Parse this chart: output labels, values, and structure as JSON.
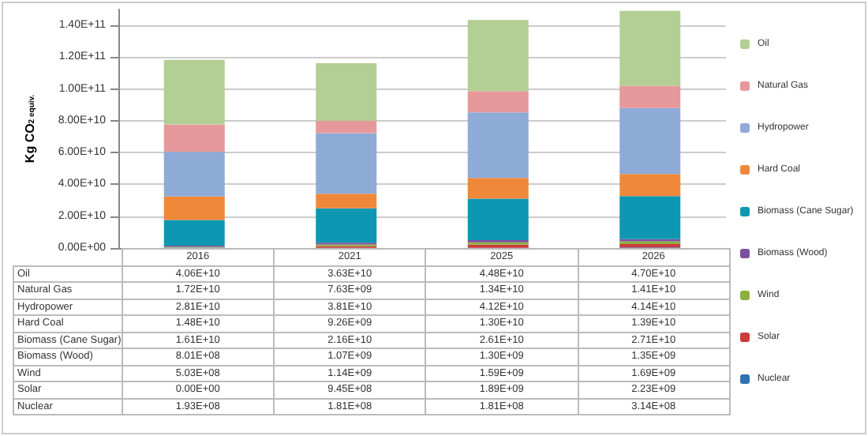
{
  "chart_data": {
    "type": "bar",
    "stacked": true,
    "ylabel": "Kg CO$_{2 equiv.}$",
    "categories": [
      "2016",
      "2021",
      "2025",
      "2026"
    ],
    "series": [
      {
        "name": "Nuclear",
        "color": "#2f73b5",
        "values": [
          193000000.0,
          181000000.0,
          181000000.0,
          314000000.0
        ],
        "value_labels": [
          "1.93E+08",
          "1.81E+08",
          "1.81E+08",
          "3.14E+08"
        ]
      },
      {
        "name": "Solar",
        "color": "#cc3b3b",
        "values": [
          0,
          945000000.0,
          1890000000.0,
          2230000000.0
        ],
        "value_labels": [
          "0.00E+00",
          "9.45E+08",
          "1.89E+09",
          "2.23E+09"
        ]
      },
      {
        "name": "Wind",
        "color": "#8cb040",
        "values": [
          503000000.0,
          1140000000.0,
          1590000000.0,
          1690000000.0
        ],
        "value_labels": [
          "5.03E+08",
          "1.14E+09",
          "1.59E+09",
          "1.69E+09"
        ]
      },
      {
        "name": "Biomass (Wood)",
        "color": "#7d4fa0",
        "values": [
          801000000.0,
          1070000000.0,
          1300000000.0,
          1350000000.0
        ],
        "value_labels": [
          "8.01E+08",
          "1.07E+09",
          "1.30E+09",
          "1.35E+09"
        ]
      },
      {
        "name": "Biomass (Cane Sugar)",
        "color": "#0e97b3",
        "values": [
          16100000000.0,
          21600000000.0,
          26100000000.0,
          27100000000.0
        ],
        "value_labels": [
          "1.61E+10",
          "2.16E+10",
          "2.61E+10",
          "2.71E+10"
        ]
      },
      {
        "name": "Hard Coal",
        "color": "#f0883a",
        "values": [
          14800000000.0,
          9260000000.0,
          13000000000.0,
          13900000000.0
        ],
        "value_labels": [
          "1.48E+10",
          "9.26E+09",
          "1.30E+10",
          "1.39E+10"
        ]
      },
      {
        "name": "Hydropower",
        "color": "#8eaad7",
        "values": [
          28100000000.0,
          38100000000.0,
          41200000000.0,
          41400000000.0
        ],
        "value_labels": [
          "2.81E+10",
          "3.81E+10",
          "4.12E+10",
          "4.14E+10"
        ]
      },
      {
        "name": "Natural Gas",
        "color": "#e6999a",
        "values": [
          17200000000.0,
          7630000000.0,
          13400000000.0,
          14100000000.0
        ],
        "value_labels": [
          "1.72E+10",
          "7.63E+09",
          "1.34E+10",
          "1.41E+10"
        ]
      },
      {
        "name": "Oil",
        "color": "#b3cf93",
        "values": [
          40600000000.0,
          36300000000.0,
          44800000000.0,
          47000000000.0
        ],
        "value_labels": [
          "4.06E+10",
          "3.63E+10",
          "4.48E+10",
          "4.70E+10"
        ]
      }
    ],
    "ylim": [
      0,
      150000000000.0
    ],
    "yticks": [
      {
        "value": 0,
        "label": "0.00E+00"
      },
      {
        "value": 20000000000.0,
        "label": "2.00E+10"
      },
      {
        "value": 40000000000.0,
        "label": "4.00E+10"
      },
      {
        "value": 60000000000.0,
        "label": "6.00E+10"
      },
      {
        "value": 80000000000.0,
        "label": "8.00E+10"
      },
      {
        "value": 100000000000.0,
        "label": "1.00E+11"
      },
      {
        "value": 120000000000.0,
        "label": "1.20E+11"
      },
      {
        "value": 140000000000.0,
        "label": "1.40E+11"
      }
    ],
    "grid": "y",
    "legend": "right"
  }
}
